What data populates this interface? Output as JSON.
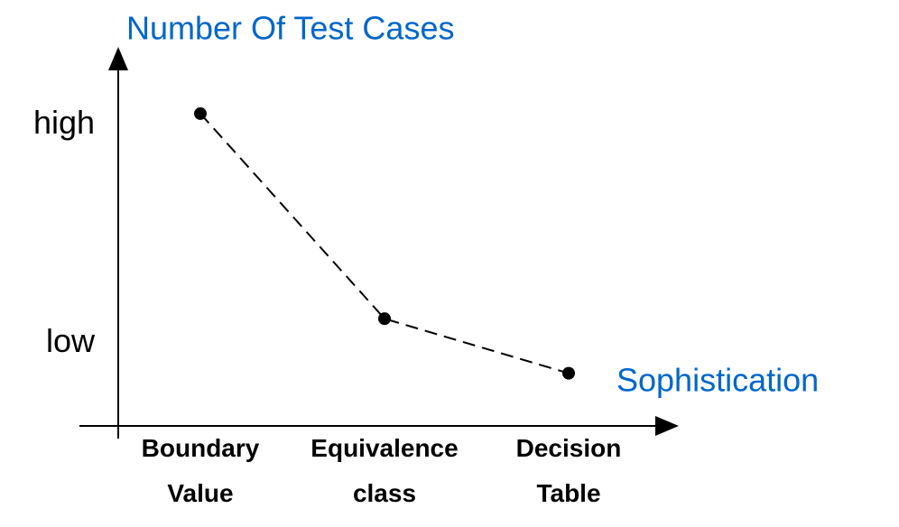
{
  "chart_data": {
    "type": "line",
    "title": "Number Of Test Cases",
    "x_label": "Sophistication",
    "categories": [
      "Boundary\nValue",
      "Equivalence\nclass",
      "Decision\nTable"
    ],
    "series": [
      {
        "values": [
          83,
          28.5,
          14
        ],
        "color": "#000000"
      }
    ],
    "ylim": [
      0,
      100
    ],
    "yticks": [
      {
        "value": 22,
        "label": "low"
      },
      {
        "value": 80,
        "label": "high"
      }
    ],
    "grid": false,
    "label_color": "#0066cc"
  }
}
